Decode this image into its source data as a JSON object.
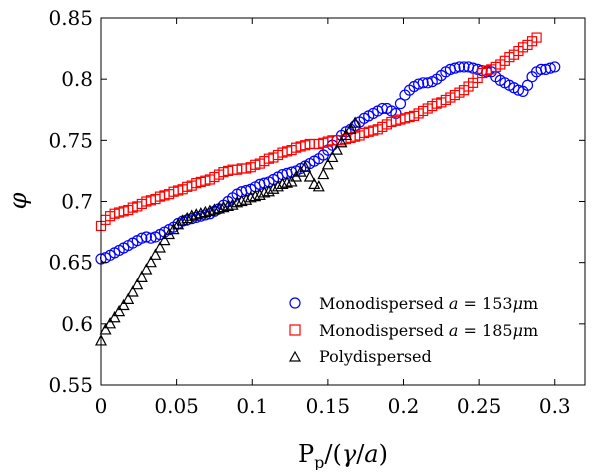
{
  "chart_data": {
    "type": "scatter",
    "xlabel": "P_p/(γ/a)",
    "ylabel": "φ",
    "xlim": [
      0,
      0.32
    ],
    "ylim": [
      0.55,
      0.85
    ],
    "xticks": [
      0,
      0.05,
      0.1,
      0.15,
      0.2,
      0.25,
      0.3
    ],
    "xtick_labels": [
      "0",
      "0.05",
      "0.1",
      "0.15",
      "0.2",
      "0.25",
      "0.3"
    ],
    "yticks": [
      0.55,
      0.6,
      0.65,
      0.7,
      0.75,
      0.8,
      0.85
    ],
    "ytick_labels": [
      "0.55",
      "0.6",
      "0.65",
      "0.7",
      "0.75",
      "0.8",
      "0.85"
    ],
    "grid": false,
    "legend_position": "bottom-right",
    "series": [
      {
        "name": "Monodispersed a = 153μm",
        "marker": "circle",
        "color": "#0000ff",
        "x": [
          0,
          0.003,
          0.006,
          0.009,
          0.012,
          0.015,
          0.018,
          0.021,
          0.024,
          0.027,
          0.03,
          0.033,
          0.036,
          0.039,
          0.042,
          0.045,
          0.048,
          0.051,
          0.054,
          0.057,
          0.06,
          0.063,
          0.066,
          0.069,
          0.072,
          0.075,
          0.078,
          0.081,
          0.084,
          0.087,
          0.09,
          0.093,
          0.096,
          0.099,
          0.102,
          0.105,
          0.108,
          0.111,
          0.114,
          0.117,
          0.12,
          0.123,
          0.126,
          0.129,
          0.132,
          0.135,
          0.138,
          0.141,
          0.144,
          0.147,
          0.15,
          0.153,
          0.156,
          0.159,
          0.162,
          0.165,
          0.168,
          0.171,
          0.174,
          0.177,
          0.18,
          0.183,
          0.186,
          0.189,
          0.192,
          0.195,
          0.198,
          0.201,
          0.204,
          0.207,
          0.21,
          0.213,
          0.216,
          0.219,
          0.222,
          0.225,
          0.228,
          0.231,
          0.234,
          0.237,
          0.24,
          0.243,
          0.246,
          0.249,
          0.252,
          0.255,
          0.258,
          0.261,
          0.264,
          0.267,
          0.27,
          0.273,
          0.276,
          0.279,
          0.282,
          0.285,
          0.288,
          0.291,
          0.294,
          0.297,
          0.3
        ],
        "y": [
          0.653,
          0.654,
          0.656,
          0.658,
          0.66,
          0.662,
          0.664,
          0.666,
          0.668,
          0.67,
          0.671,
          0.67,
          0.671,
          0.673,
          0.675,
          0.677,
          0.679,
          0.682,
          0.684,
          0.685,
          0.686,
          0.687,
          0.688,
          0.689,
          0.69,
          0.692,
          0.694,
          0.697,
          0.7,
          0.703,
          0.706,
          0.708,
          0.709,
          0.71,
          0.712,
          0.714,
          0.715,
          0.716,
          0.718,
          0.72,
          0.722,
          0.723,
          0.724,
          0.725,
          0.727,
          0.729,
          0.731,
          0.733,
          0.735,
          0.738,
          0.742,
          0.746,
          0.75,
          0.754,
          0.757,
          0.759,
          0.762,
          0.765,
          0.768,
          0.77,
          0.772,
          0.774,
          0.776,
          0.776,
          0.774,
          0.772,
          0.78,
          0.787,
          0.791,
          0.794,
          0.796,
          0.797,
          0.797,
          0.798,
          0.8,
          0.803,
          0.806,
          0.808,
          0.809,
          0.81,
          0.81,
          0.81,
          0.809,
          0.808,
          0.807,
          0.806,
          0.806,
          0.802,
          0.799,
          0.797,
          0.795,
          0.793,
          0.791,
          0.79,
          0.795,
          0.802,
          0.806,
          0.808,
          0.808,
          0.809,
          0.81
        ]
      },
      {
        "name": "Monodispersed a = 185μm",
        "marker": "square",
        "color": "#ff0000",
        "x": [
          0,
          0.003,
          0.006,
          0.009,
          0.012,
          0.015,
          0.018,
          0.021,
          0.024,
          0.027,
          0.03,
          0.033,
          0.036,
          0.039,
          0.042,
          0.045,
          0.048,
          0.051,
          0.054,
          0.057,
          0.06,
          0.063,
          0.066,
          0.069,
          0.072,
          0.075,
          0.078,
          0.081,
          0.084,
          0.087,
          0.09,
          0.093,
          0.096,
          0.099,
          0.102,
          0.105,
          0.108,
          0.111,
          0.114,
          0.117,
          0.12,
          0.123,
          0.126,
          0.129,
          0.132,
          0.135,
          0.138,
          0.141,
          0.144,
          0.147,
          0.15,
          0.153,
          0.156,
          0.159,
          0.162,
          0.165,
          0.168,
          0.171,
          0.174,
          0.177,
          0.18,
          0.183,
          0.186,
          0.189,
          0.192,
          0.195,
          0.198,
          0.201,
          0.204,
          0.207,
          0.21,
          0.213,
          0.216,
          0.219,
          0.222,
          0.225,
          0.228,
          0.231,
          0.234,
          0.237,
          0.24,
          0.243,
          0.246,
          0.249,
          0.252,
          0.255,
          0.258,
          0.261,
          0.264,
          0.267,
          0.27,
          0.273,
          0.276,
          0.279,
          0.282,
          0.285,
          0.288
        ],
        "y": [
          0.68,
          0.685,
          0.688,
          0.69,
          0.691,
          0.692,
          0.693,
          0.695,
          0.696,
          0.698,
          0.7,
          0.701,
          0.702,
          0.704,
          0.705,
          0.706,
          0.708,
          0.709,
          0.71,
          0.712,
          0.713,
          0.715,
          0.716,
          0.717,
          0.718,
          0.72,
          0.722,
          0.724,
          0.725,
          0.726,
          0.726,
          0.727,
          0.727,
          0.728,
          0.73,
          0.731,
          0.733,
          0.735,
          0.736,
          0.738,
          0.74,
          0.741,
          0.742,
          0.744,
          0.745,
          0.746,
          0.747,
          0.747,
          0.747,
          0.748,
          0.749,
          0.75,
          0.75,
          0.75,
          0.751,
          0.752,
          0.753,
          0.754,
          0.756,
          0.757,
          0.758,
          0.759,
          0.761,
          0.763,
          0.765,
          0.766,
          0.767,
          0.768,
          0.769,
          0.77,
          0.772,
          0.774,
          0.776,
          0.778,
          0.78,
          0.781,
          0.783,
          0.785,
          0.787,
          0.789,
          0.791,
          0.794,
          0.797,
          0.801,
          0.805,
          0.807,
          0.808,
          0.81,
          0.812,
          0.815,
          0.818,
          0.82,
          0.823,
          0.826,
          0.828,
          0.831,
          0.834
        ]
      },
      {
        "name": "Polydispersed",
        "marker": "triangle",
        "color": "#000000",
        "x": [
          0,
          0.003,
          0.006,
          0.009,
          0.012,
          0.015,
          0.018,
          0.021,
          0.024,
          0.027,
          0.03,
          0.033,
          0.036,
          0.039,
          0.042,
          0.045,
          0.048,
          0.051,
          0.054,
          0.057,
          0.06,
          0.063,
          0.066,
          0.069,
          0.072,
          0.075,
          0.078,
          0.081,
          0.084,
          0.087,
          0.09,
          0.093,
          0.096,
          0.099,
          0.102,
          0.105,
          0.108,
          0.111,
          0.114,
          0.117,
          0.12,
          0.123,
          0.126,
          0.129,
          0.132,
          0.135,
          0.138,
          0.141,
          0.144,
          0.147,
          0.15,
          0.153,
          0.156,
          0.159,
          0.162,
          0.165,
          0.168
        ],
        "y": [
          0.586,
          0.595,
          0.6,
          0.605,
          0.61,
          0.615,
          0.62,
          0.626,
          0.632,
          0.638,
          0.644,
          0.65,
          0.656,
          0.662,
          0.668,
          0.673,
          0.677,
          0.681,
          0.684,
          0.686,
          0.688,
          0.689,
          0.69,
          0.691,
          0.692,
          0.693,
          0.694,
          0.695,
          0.696,
          0.697,
          0.699,
          0.7,
          0.701,
          0.703,
          0.704,
          0.705,
          0.707,
          0.708,
          0.71,
          0.712,
          0.714,
          0.715,
          0.716,
          0.72,
          0.724,
          0.728,
          0.72,
          0.714,
          0.712,
          0.722,
          0.73,
          0.736,
          0.742,
          0.748,
          0.754,
          0.759,
          0.764
        ]
      }
    ]
  }
}
